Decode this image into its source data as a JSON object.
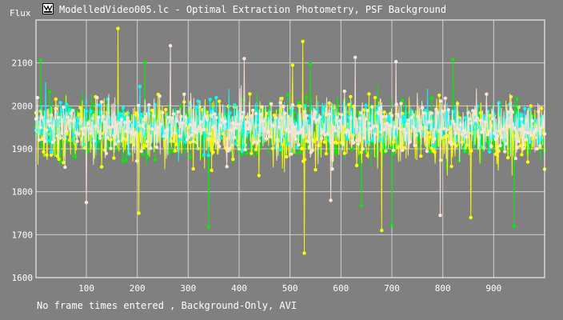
{
  "window": {
    "title": "ModelledVideo005.lc - Optimal Extraction Photometry, PSF Background",
    "icon": "lightcurve-app-icon"
  },
  "footer": {
    "status": "No frame times entered , Background-Only, AVI"
  },
  "chart_data": {
    "type": "line",
    "title": "ModelledVideo005.lc - Optimal Extraction Photometry, PSF Background",
    "xlabel": "",
    "ylabel": "Flux",
    "xlim": [
      1,
      1000
    ],
    "ylim": [
      1600,
      2200
    ],
    "xticks": [
      100,
      200,
      300,
      400,
      500,
      600,
      700,
      800,
      900
    ],
    "yticks": [
      1600,
      1700,
      1800,
      1900,
      2000,
      2100
    ],
    "grid": true,
    "legend": "none",
    "series": [
      {
        "color": "#00ee00",
        "frames": 1000,
        "mean": 1945,
        "spread": 55,
        "peaks": [
          [
            10,
            2105
          ],
          [
            215,
            2100
          ],
          [
            820,
            2108
          ],
          [
            540,
            2098
          ]
        ],
        "dips": [
          [
            340,
            1718
          ],
          [
            700,
            1722
          ],
          [
            940,
            1720
          ],
          [
            640,
            1768
          ]
        ]
      },
      {
        "color": "#ffff00",
        "frames": 1000,
        "mean": 1940,
        "spread": 55,
        "peaks": [
          [
            162,
            2180
          ],
          [
            525,
            2150
          ],
          [
            505,
            2095
          ]
        ],
        "dips": [
          [
            528,
            1657
          ],
          [
            680,
            1710
          ],
          [
            203,
            1750
          ],
          [
            855,
            1740
          ]
        ]
      },
      {
        "color": "#00ffff",
        "frames": 1000,
        "mean": 1955,
        "spread": 40,
        "peaks": [
          [
            20,
            2055
          ],
          [
            205,
            2045
          ],
          [
            380,
            2040
          ],
          [
            770,
            2040
          ]
        ],
        "dips": []
      },
      {
        "color": "#ffe4d8",
        "frames": 1000,
        "mean": 1950,
        "spread": 50,
        "peaks": [
          [
            265,
            2140
          ],
          [
            410,
            2110
          ],
          [
            628,
            2113
          ],
          [
            708,
            2103
          ]
        ],
        "dips": [
          [
            795,
            1745
          ],
          [
            100,
            1775
          ],
          [
            580,
            1780
          ]
        ]
      }
    ]
  },
  "colors": {
    "background": "#808080",
    "grid": "#d0d0d0",
    "axis": "#ffffff",
    "text": "#ffffff"
  }
}
